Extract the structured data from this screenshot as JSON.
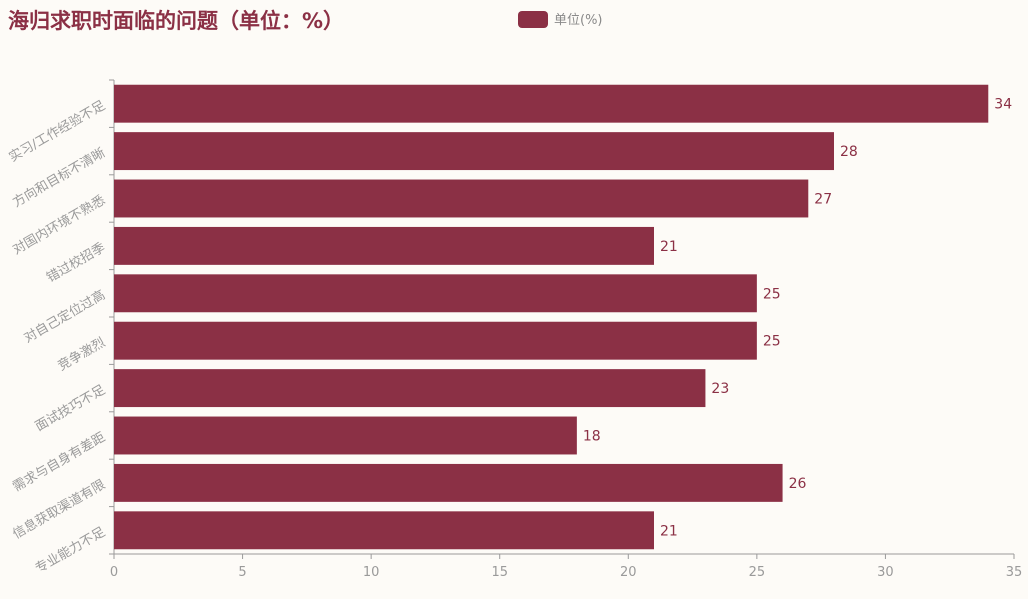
{
  "chart_data": {
    "type": "bar",
    "orientation": "horizontal",
    "title": "海归求职时面临的问题（单位：%）",
    "legend": {
      "entries": [
        "单位(%)"
      ],
      "placement": "top-center"
    },
    "categories": [
      "实习/工作经验不足",
      "方向和目标不清晰",
      "对国内环境不熟悉",
      "错过校招季",
      "对自己定位过高",
      "竞争激烈",
      "面试技巧不足",
      "需求与自身有差距",
      "信息获取渠道有限",
      "专业能力不足"
    ],
    "series": [
      {
        "name": "单位(%)",
        "values": [
          34,
          28,
          27,
          21,
          25,
          25,
          23,
          18,
          26,
          21
        ],
        "color": "#8b3045"
      }
    ],
    "xlim": [
      0,
      35
    ],
    "xticks": [
      "0",
      "5",
      "10",
      "15",
      "20",
      "25",
      "30",
      "35"
    ],
    "grid": false,
    "data_labels": true
  }
}
